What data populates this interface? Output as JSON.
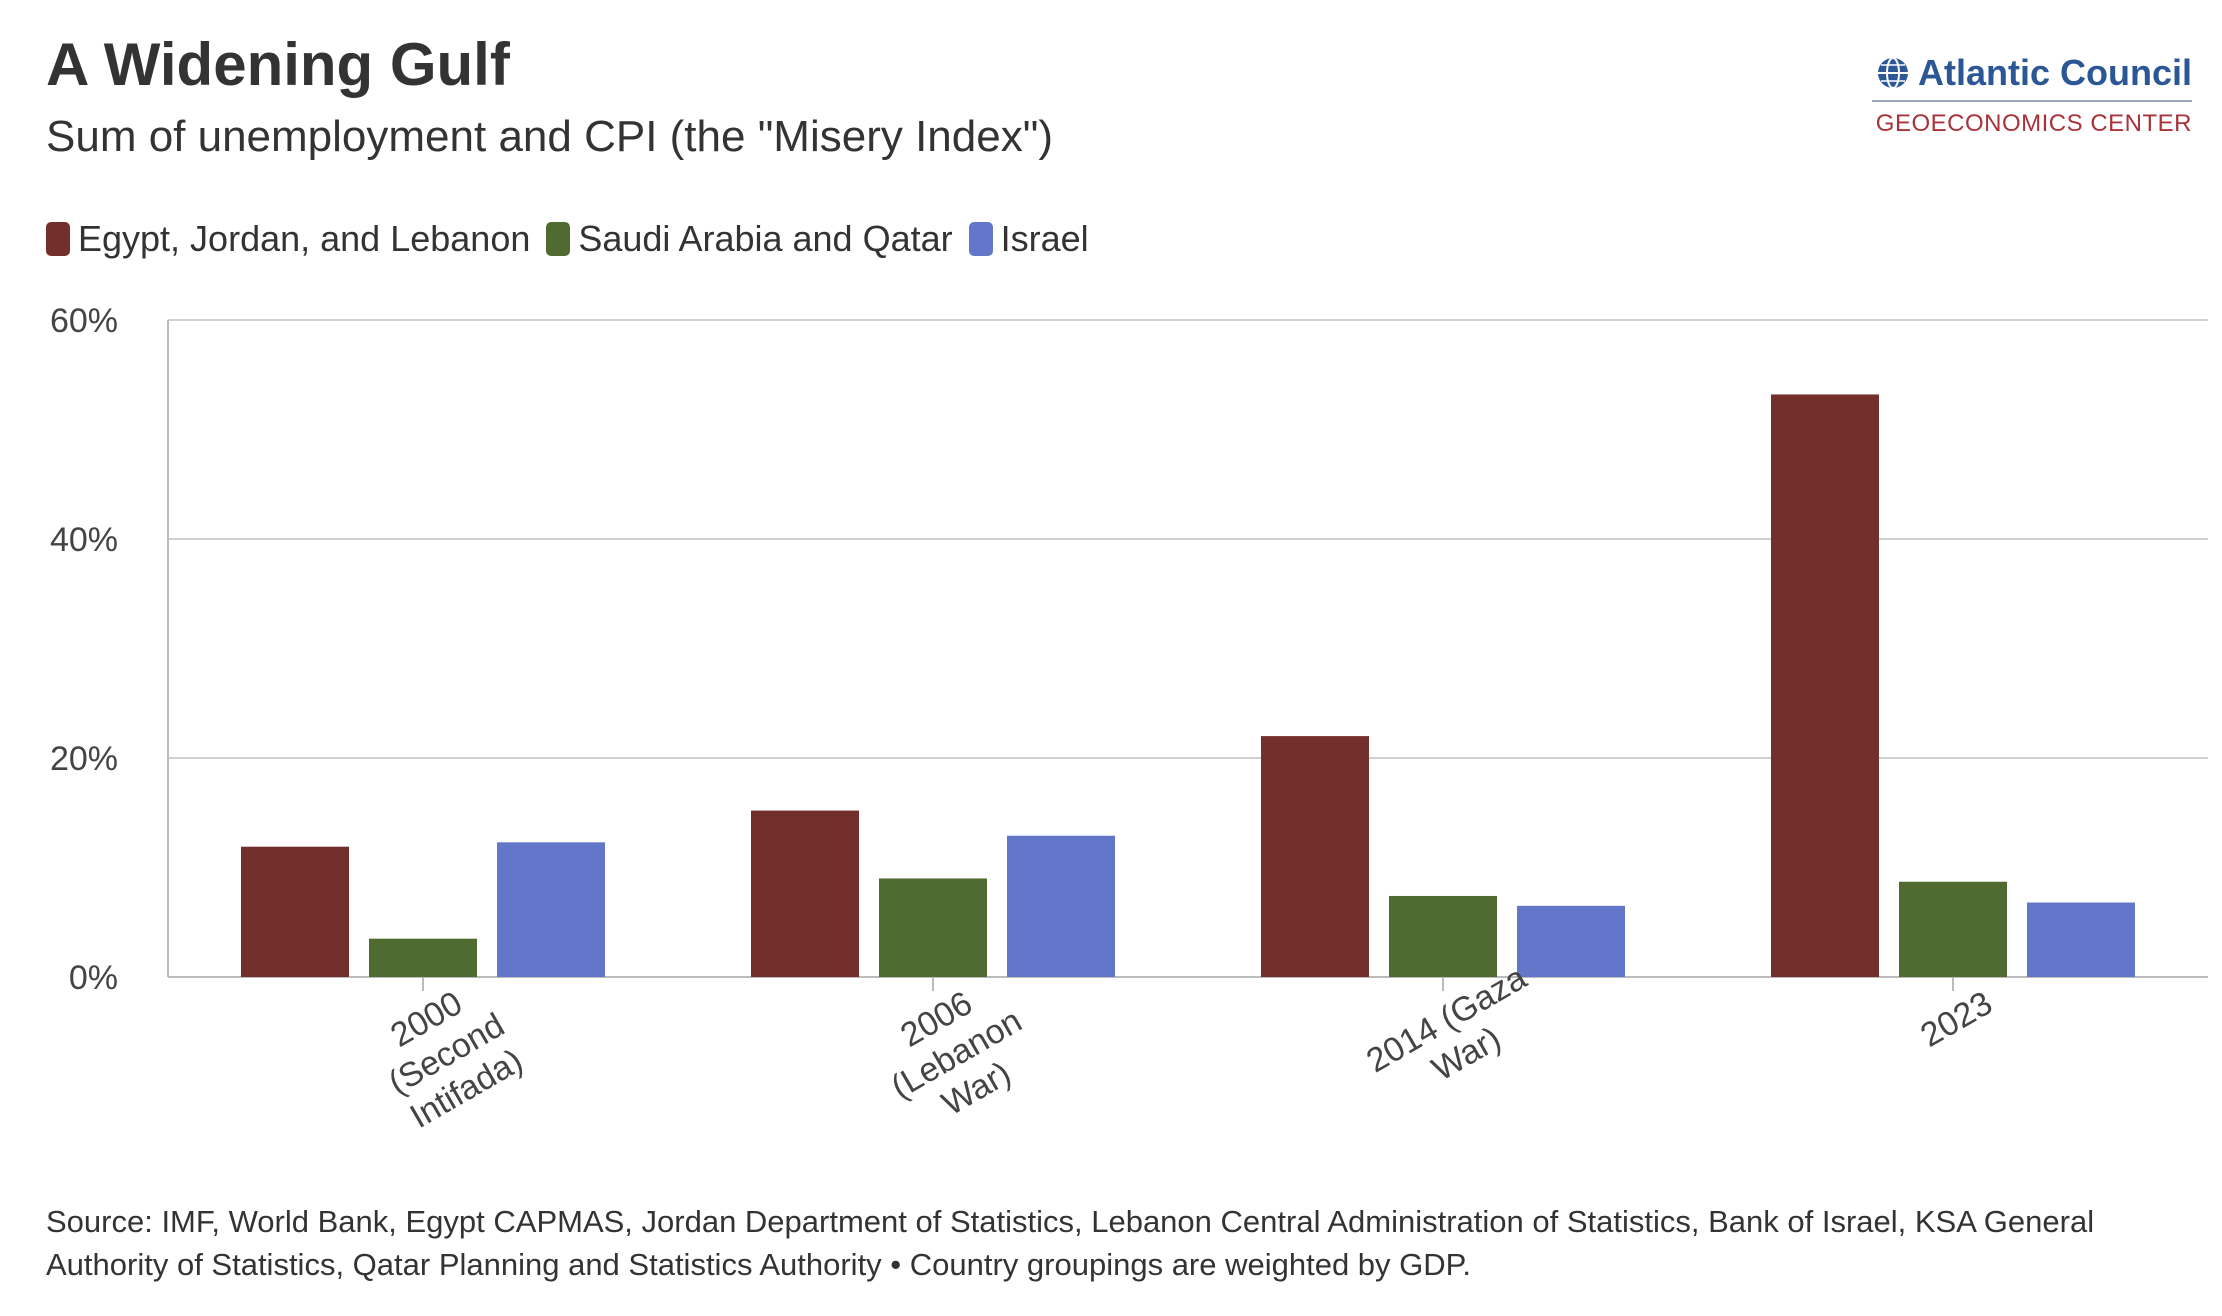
{
  "header": {
    "title": "A Widening Gulf",
    "subtitle": "Sum of unemployment and CPI (the \"Misery Index\")"
  },
  "logo": {
    "name": "Atlantic Council",
    "sub": "GEOECONOMICS CENTER",
    "icon": "globe-icon"
  },
  "footer": {
    "source": "Source: IMF, World Bank, Egypt CAPMAS, Jordan Department of Statistics, Lebanon Central Administration of Statistics, Bank of Israel, KSA General Authority of Statistics, Qatar Planning and Statistics Authority • Country groupings are weighted by GDP."
  },
  "chart_data": {
    "type": "bar",
    "categories": [
      [
        "2000",
        "(Second",
        "Intifada)"
      ],
      [
        "2006",
        "(Lebanon",
        "War)"
      ],
      [
        "2014 (Gaza",
        "War)"
      ],
      [
        "2023"
      ]
    ],
    "series": [
      {
        "name": "Egypt, Jordan, and Lebanon",
        "color": "#722f2c",
        "values": [
          11.9,
          15.2,
          22.0,
          53.2
        ]
      },
      {
        "name": "Saudi Arabia and Qatar",
        "color": "#506b32",
        "values": [
          3.5,
          9.0,
          7.4,
          8.7
        ]
      },
      {
        "name": "Israel",
        "color": "#6277c9",
        "values": [
          12.3,
          12.9,
          6.5,
          6.8
        ]
      }
    ],
    "yticks": [
      "0%",
      "20%",
      "40%",
      "60%"
    ],
    "ylim": [
      0,
      60
    ],
    "grid": true,
    "legend_position": "top-left"
  }
}
